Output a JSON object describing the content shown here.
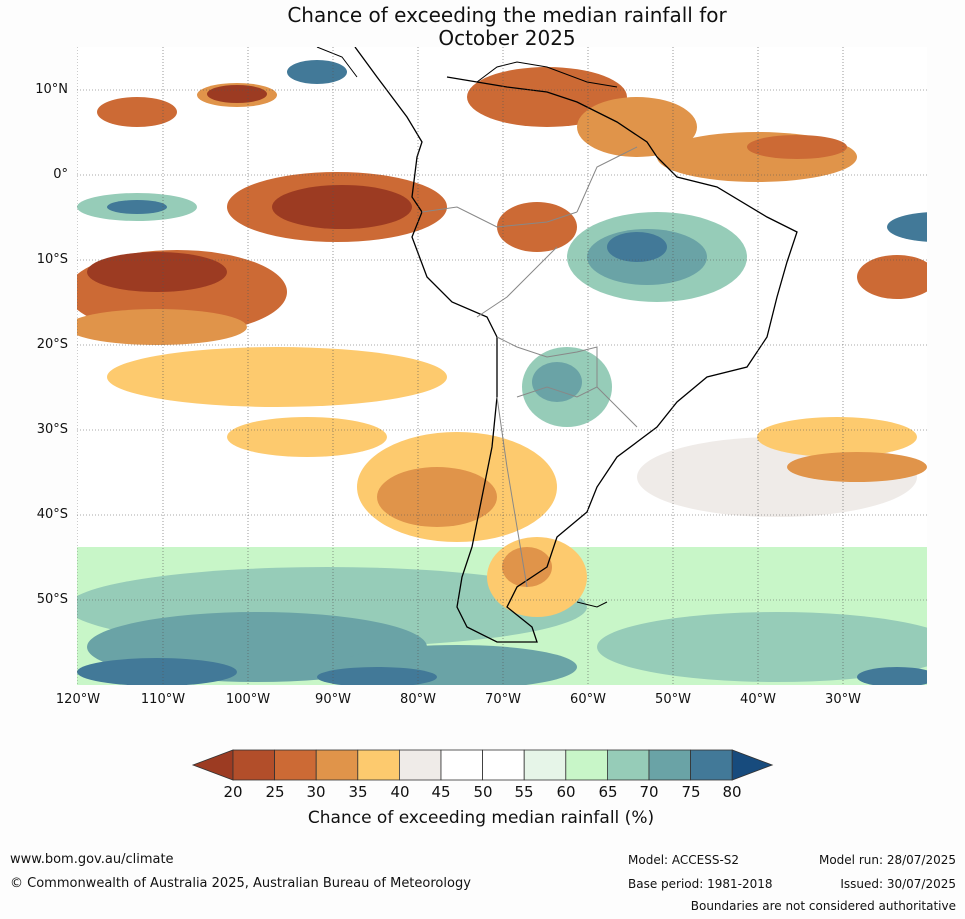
{
  "title_line1": "Chance of exceeding the median rainfall for",
  "title_line2": "October 2025",
  "lat_labels": [
    "10°N",
    "0°",
    "10°S",
    "20°S",
    "30°S",
    "40°S",
    "50°S"
  ],
  "lon_labels": [
    "120°W",
    "110°W",
    "100°W",
    "90°W",
    "80°W",
    "70°W",
    "60°W",
    "50°W",
    "40°W",
    "30°W"
  ],
  "colorbar": {
    "ticks": [
      "20",
      "25",
      "30",
      "35",
      "40",
      "45",
      "50",
      "55",
      "60",
      "65",
      "70",
      "75",
      "80"
    ],
    "colors": [
      "#9c3b22",
      "#b24e2a",
      "#cc6a35",
      "#e0944a",
      "#fdca6e",
      "#efebe8",
      "#ffffff",
      "#ffffff",
      "#e6f5e8",
      "#c8f6c8",
      "#96ccb8",
      "#6aa3a6",
      "#427998",
      "#174b7d"
    ],
    "label": "Chance of exceeding median rainfall (%)"
  },
  "footer": {
    "website": "www.bom.gov.au/climate",
    "copyright": "© Commonwealth of Australia 2025, Australian Bureau of Meteorology",
    "model": "Model: ACCESS-S2",
    "base_period": "Base period: 1981-2018",
    "model_run": "Model run: 28/07/2025",
    "issued": "Issued: 30/07/2025",
    "disclaimer": "Boundaries are not considered authoritative"
  }
}
